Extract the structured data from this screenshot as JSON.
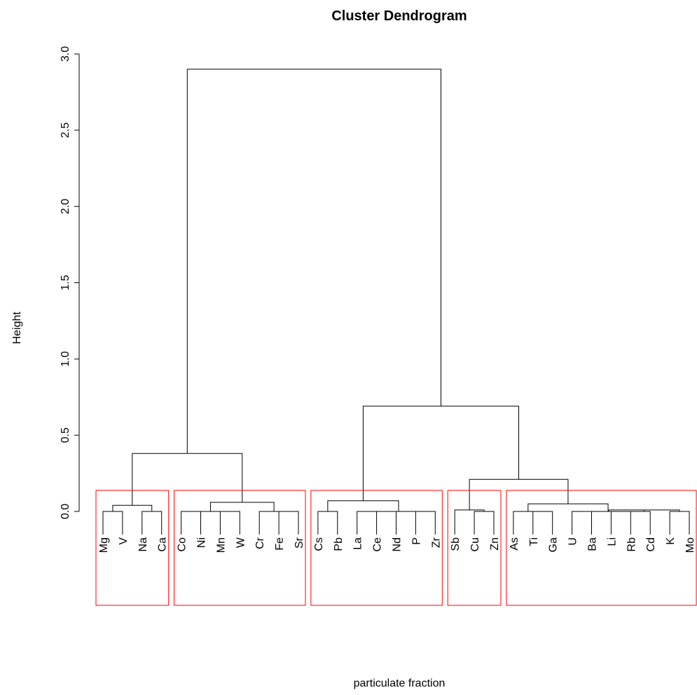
{
  "chart_data": {
    "type": "dendrogram",
    "title": "Cluster Dendrogram",
    "xlabel": "particulate fraction",
    "ylabel": "Height",
    "ylim": [
      0,
      3.0
    ],
    "y_ticks": [
      "0.0",
      "0.5",
      "1.0",
      "1.5",
      "2.0",
      "2.5",
      "3.0"
    ],
    "leaves": [
      "Mg",
      "V",
      "Na",
      "Ca",
      "Co",
      "Ni",
      "Mn",
      "W",
      "Cr",
      "Fe",
      "Sr",
      "Cs",
      "Pb",
      "La",
      "Ce",
      "Nd",
      "P",
      "Zr",
      "Sb",
      "Cu",
      "Zn",
      "As",
      "Ti",
      "Ga",
      "U",
      "Ba",
      "Li",
      "Rb",
      "Cd",
      "K",
      "Mo"
    ],
    "merges": [
      {
        "children": [
          "Mg",
          "V"
        ],
        "height": 0.0
      },
      {
        "children": [
          "Na",
          "Ca"
        ],
        "height": 0.0
      },
      {
        "children": [
          "Mg,V",
          "Na,Ca"
        ],
        "height": 0.04
      },
      {
        "children": [
          "Co",
          "Ni"
        ],
        "height": 0.0
      },
      {
        "children": [
          "Mn",
          "W"
        ],
        "height": 0.0
      },
      {
        "children": [
          "Co,Ni",
          "Mn,W"
        ],
        "height": 0.0
      },
      {
        "children": [
          "Fe",
          "Sr"
        ],
        "height": 0.0
      },
      {
        "children": [
          "Cr",
          "Fe,Sr"
        ],
        "height": 0.0
      },
      {
        "children": [
          "Co..W",
          "Cr..Sr"
        ],
        "height": 0.06
      },
      {
        "children": [
          "Mg..Ca",
          "Co..Sr"
        ],
        "height": 0.38
      },
      {
        "children": [
          "Cs",
          "Pb"
        ],
        "height": 0.0
      },
      {
        "children": [
          "Ce",
          "Nd"
        ],
        "height": 0.0
      },
      {
        "children": [
          "La",
          "Ce,Nd"
        ],
        "height": 0.0
      },
      {
        "children": [
          "P",
          "Zr"
        ],
        "height": 0.0
      },
      {
        "children": [
          "La..Nd",
          "P,Zr"
        ],
        "height": 0.0
      },
      {
        "children": [
          "Cs,Pb",
          "La..Zr"
        ],
        "height": 0.07
      },
      {
        "children": [
          "Cu",
          "Zn"
        ],
        "height": 0.0
      },
      {
        "children": [
          "Sb",
          "Cu,Zn"
        ],
        "height": 0.01
      },
      {
        "children": [
          "Ti",
          "Ga"
        ],
        "height": 0.0
      },
      {
        "children": [
          "As",
          "Ti,Ga"
        ],
        "height": 0.0
      },
      {
        "children": [
          "Rb",
          "Cd"
        ],
        "height": 0.0
      },
      {
        "children": [
          "Li",
          "Rb,Cd"
        ],
        "height": 0.0
      },
      {
        "children": [
          "Ba",
          "Li..Cd"
        ],
        "height": 0.0
      },
      {
        "children": [
          "K",
          "Mo"
        ],
        "height": 0.0
      },
      {
        "children": [
          "Ba..Cd",
          "K,Mo"
        ],
        "height": 0.01
      },
      {
        "children": [
          "U",
          "Ba..Mo"
        ],
        "height": 0.0
      },
      {
        "children": [
          "As..Ga",
          "U..Mo"
        ],
        "height": 0.05
      },
      {
        "children": [
          "Sb..Zn",
          "As..Mo"
        ],
        "height": 0.21
      },
      {
        "children": [
          "Cs..Zr",
          "Sb..Mo"
        ],
        "height": 0.69
      },
      {
        "children": [
          "Mg..Sr",
          "Cs..Mo"
        ],
        "height": 2.9
      }
    ],
    "clusters": [
      [
        "Mg",
        "V",
        "Na",
        "Ca"
      ],
      [
        "Co",
        "Ni",
        "Mn",
        "W",
        "Cr",
        "Fe",
        "Sr"
      ],
      [
        "Cs",
        "Pb",
        "La",
        "Ce",
        "Nd",
        "P",
        "Zr"
      ],
      [
        "Sb",
        "Cu",
        "Zn"
      ],
      [
        "As",
        "Ti",
        "Ga",
        "U",
        "Ba",
        "Li",
        "Rb",
        "Cd",
        "K",
        "Mo"
      ]
    ],
    "cluster_box_color": "#ff0000",
    "line_color": "#000000"
  }
}
